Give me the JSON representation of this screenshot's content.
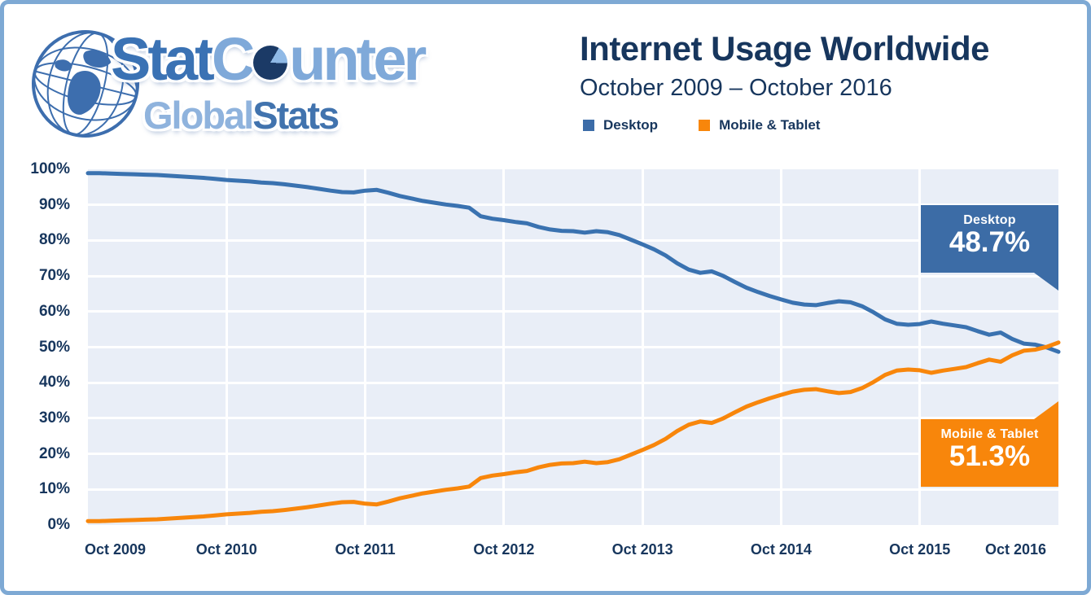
{
  "logo": {
    "word1_a": "Stat",
    "word1_b": "C",
    "word1_c": "unter",
    "word2_a": "Global",
    "word2_b": "Stats",
    "colors": {
      "dark_blue": "#3a72b4",
      "light_blue": "#7fa9d9",
      "light_blue2": "#8fb3dd",
      "dark_blue2": "#4173ae",
      "pie_dark": "#1b3a66",
      "pie_light": "#8fb9e6",
      "globe_stroke": "#3d6eae"
    }
  },
  "header": {
    "title": "Internet Usage Worldwide",
    "subtitle": "October 2009 – October 2016"
  },
  "legend": [
    {
      "label": "Desktop",
      "color": "#3c6ca8"
    },
    {
      "label": "Mobile & Tablet",
      "color": "#f8860b"
    }
  ],
  "callouts": {
    "desktop": {
      "label": "Desktop",
      "value": "48.7%",
      "color": "#3c6ca6"
    },
    "mobile": {
      "label": "Mobile & Tablet",
      "value": "51.3%",
      "color": "#f8860b"
    }
  },
  "frame_color": "#7ea9d4",
  "plot_background": "#e9eef7",
  "chart_data": {
    "type": "line",
    "title": "Internet Usage Worldwide",
    "subtitle": "October 2009 – October 2016",
    "x_unit": "month",
    "x_start": "Oct 2009",
    "x_end": "Oct 2016",
    "x_tick_labels": [
      "Oct 2009",
      "Oct 2010",
      "Oct 2011",
      "Oct 2012",
      "Oct 2013",
      "Oct 2014",
      "Oct 2015",
      "Oct 2016"
    ],
    "y_tick_labels": [
      "100%",
      "90%",
      "80%",
      "70%",
      "60%",
      "50%",
      "40%",
      "30%",
      "20%",
      "10%",
      "0%"
    ],
    "ylim": [
      0,
      100
    ],
    "grid": "white gridlines on light blue plot area, vertical line each October",
    "legend_position": "top",
    "series": [
      {
        "name": "Desktop",
        "color": "#3a72b0",
        "end_label": "48.7%",
        "values": [
          98.9,
          98.9,
          98.8,
          98.7,
          98.6,
          98.5,
          98.4,
          98.2,
          98.0,
          97.8,
          97.6,
          97.3,
          97.0,
          96.8,
          96.6,
          96.3,
          96.1,
          95.8,
          95.4,
          95.0,
          94.5,
          94.0,
          93.6,
          93.5,
          94.0,
          94.2,
          93.4,
          92.5,
          91.8,
          91.1,
          90.6,
          90.1,
          89.7,
          89.2,
          86.8,
          86.1,
          85.7,
          85.2,
          84.8,
          83.8,
          83.1,
          82.7,
          82.6,
          82.2,
          82.6,
          82.3,
          81.5,
          80.2,
          78.9,
          77.5,
          75.8,
          73.6,
          71.8,
          70.9,
          71.3,
          70.0,
          68.3,
          66.7,
          65.5,
          64.4,
          63.4,
          62.5,
          62.0,
          61.8,
          62.4,
          62.9,
          62.6,
          61.5,
          59.8,
          57.8,
          56.6,
          56.3,
          56.5,
          57.2,
          56.6,
          56.1,
          55.6,
          54.5,
          53.5,
          54.1,
          52.3,
          51.0,
          50.7,
          49.9,
          48.7
        ]
      },
      {
        "name": "Mobile & Tablet",
        "color": "#f8860b",
        "end_label": "51.3%",
        "values": [
          1.1,
          1.1,
          1.2,
          1.3,
          1.4,
          1.5,
          1.6,
          1.8,
          2.0,
          2.2,
          2.4,
          2.7,
          3.0,
          3.2,
          3.4,
          3.7,
          3.9,
          4.2,
          4.6,
          5.0,
          5.5,
          6.0,
          6.4,
          6.5,
          6.0,
          5.8,
          6.6,
          7.5,
          8.2,
          8.9,
          9.4,
          9.9,
          10.3,
          10.8,
          13.2,
          13.9,
          14.3,
          14.8,
          15.2,
          16.2,
          16.9,
          17.3,
          17.4,
          17.8,
          17.4,
          17.7,
          18.5,
          19.8,
          21.1,
          22.5,
          24.2,
          26.4,
          28.2,
          29.1,
          28.7,
          30.0,
          31.7,
          33.3,
          34.5,
          35.6,
          36.6,
          37.5,
          38.0,
          38.2,
          37.6,
          37.1,
          37.4,
          38.5,
          40.2,
          42.2,
          43.4,
          43.7,
          43.5,
          42.8,
          43.4,
          43.9,
          44.4,
          45.5,
          46.5,
          45.9,
          47.7,
          49.0,
          49.3,
          50.1,
          51.3
        ]
      }
    ]
  }
}
